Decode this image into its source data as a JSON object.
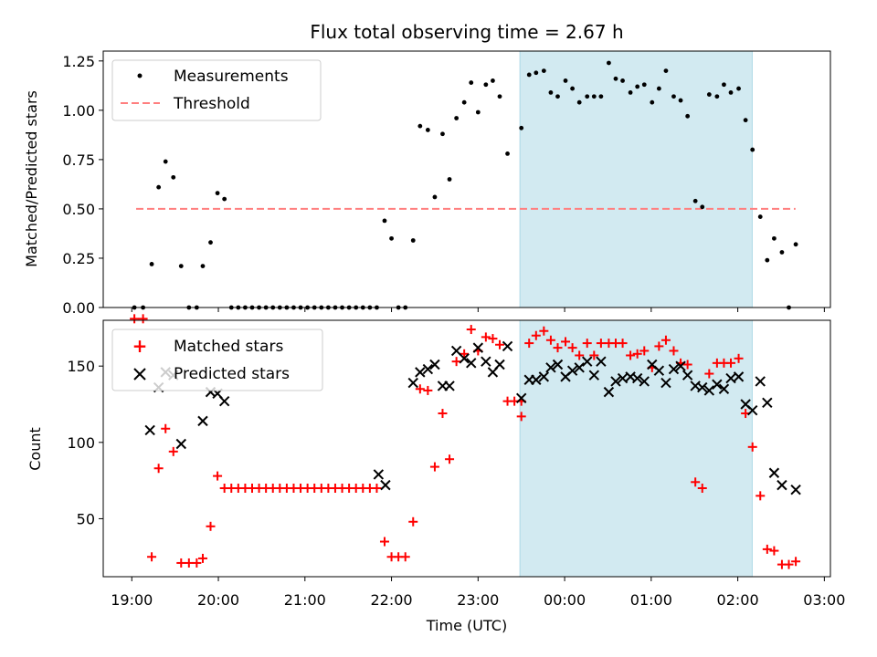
{
  "title": "Flux total observing time = 2.67 h",
  "colors": {
    "measurement": "#000000",
    "threshold": "#ff7f7f",
    "matched": "#ff0000",
    "predicted": "#000000",
    "highlight": "#add8e6"
  },
  "chart_data": [
    {
      "type": "scatter",
      "panel": "top",
      "xlabel": "",
      "ylabel": "Matched/Predicted stars",
      "x_unit": "hours since 19:00 UTC",
      "xlim": [
        -0.33,
        8.07
      ],
      "ylim": [
        0.0,
        1.3
      ],
      "yticks": [
        0.0,
        0.25,
        0.5,
        0.75,
        1.0,
        1.25
      ],
      "ytick_labels": [
        "0.00",
        "0.25",
        "0.50",
        "0.75",
        "1.00",
        "1.25"
      ],
      "legend": {
        "placement": "top-left",
        "entries": [
          "Measurements",
          "Threshold"
        ]
      },
      "highlight_band": {
        "x_start": "23:29",
        "x_end": "02:10"
      },
      "threshold": {
        "label": "Threshold",
        "y": 0.5,
        "x_start": "19:03",
        "x_end": "02:40"
      },
      "series": [
        {
          "name": "Measurements",
          "points": [
            [
              0.03,
              0.0
            ],
            [
              0.13,
              0.0
            ],
            [
              0.23,
              0.22
            ],
            [
              0.31,
              0.61
            ],
            [
              0.39,
              0.74
            ],
            [
              0.48,
              0.66
            ],
            [
              0.57,
              0.21
            ],
            [
              0.66,
              0.0
            ],
            [
              0.75,
              0.0
            ],
            [
              0.82,
              0.21
            ],
            [
              0.91,
              0.33
            ],
            [
              0.99,
              0.58
            ],
            [
              1.07,
              0.55
            ],
            [
              1.15,
              0.0
            ],
            [
              1.23,
              0.0
            ],
            [
              1.31,
              0.0
            ],
            [
              1.39,
              0.0
            ],
            [
              1.47,
              0.0
            ],
            [
              1.55,
              0.0
            ],
            [
              1.63,
              0.0
            ],
            [
              1.71,
              0.0
            ],
            [
              1.79,
              0.0
            ],
            [
              1.87,
              0.0
            ],
            [
              1.95,
              0.0
            ],
            [
              2.03,
              0.0
            ],
            [
              2.11,
              0.0
            ],
            [
              2.19,
              0.0
            ],
            [
              2.27,
              0.0
            ],
            [
              2.35,
              0.0
            ],
            [
              2.43,
              0.0
            ],
            [
              2.51,
              0.0
            ],
            [
              2.59,
              0.0
            ],
            [
              2.67,
              0.0
            ],
            [
              2.75,
              0.0
            ],
            [
              2.83,
              0.0
            ],
            [
              2.92,
              0.44
            ],
            [
              3.0,
              0.35
            ],
            [
              3.08,
              0.0
            ],
            [
              3.16,
              0.0
            ],
            [
              3.25,
              0.34
            ],
            [
              3.33,
              0.92
            ],
            [
              3.42,
              0.9
            ],
            [
              3.5,
              0.56
            ],
            [
              3.59,
              0.88
            ],
            [
              3.67,
              0.65
            ],
            [
              3.75,
              0.96
            ],
            [
              3.84,
              1.04
            ],
            [
              3.92,
              1.14
            ],
            [
              4.0,
              0.99
            ],
            [
              4.09,
              1.13
            ],
            [
              4.17,
              1.15
            ],
            [
              4.25,
              1.07
            ],
            [
              4.34,
              0.78
            ],
            [
              4.5,
              0.91
            ],
            [
              4.59,
              1.18
            ],
            [
              4.67,
              1.19
            ],
            [
              4.76,
              1.2
            ],
            [
              4.84,
              1.09
            ],
            [
              4.92,
              1.07
            ],
            [
              5.01,
              1.15
            ],
            [
              5.09,
              1.11
            ],
            [
              5.17,
              1.04
            ],
            [
              5.26,
              1.07
            ],
            [
              5.34,
              1.07
            ],
            [
              5.42,
              1.07
            ],
            [
              5.51,
              1.24
            ],
            [
              5.59,
              1.16
            ],
            [
              5.67,
              1.15
            ],
            [
              5.76,
              1.09
            ],
            [
              5.84,
              1.12
            ],
            [
              5.92,
              1.13
            ],
            [
              6.01,
              1.04
            ],
            [
              6.09,
              1.11
            ],
            [
              6.17,
              1.2
            ],
            [
              6.26,
              1.07
            ],
            [
              6.34,
              1.05
            ],
            [
              6.42,
              0.97
            ],
            [
              6.51,
              0.54
            ],
            [
              6.59,
              0.51
            ],
            [
              6.67,
              1.08
            ],
            [
              6.76,
              1.07
            ],
            [
              6.84,
              1.13
            ],
            [
              6.92,
              1.09
            ],
            [
              7.01,
              1.11
            ],
            [
              7.09,
              0.95
            ],
            [
              7.17,
              0.8
            ],
            [
              7.26,
              0.46
            ],
            [
              7.34,
              0.24
            ],
            [
              7.42,
              0.35
            ],
            [
              7.51,
              0.28
            ],
            [
              7.59,
              0.0
            ],
            [
              7.67,
              0.32
            ]
          ]
        }
      ]
    },
    {
      "type": "scatter",
      "panel": "bottom",
      "xlabel": "Time (UTC)",
      "ylabel": "Count",
      "x_unit": "hours since 19:00 UTC",
      "xlim": [
        -0.33,
        8.07
      ],
      "ylim": [
        12,
        180
      ],
      "xticks": [
        0,
        1,
        2,
        3,
        4,
        5,
        6,
        7,
        8
      ],
      "xtick_labels": [
        "19:00",
        "20:00",
        "21:00",
        "22:00",
        "23:00",
        "00:00",
        "01:00",
        "02:00",
        "03:00"
      ],
      "yticks": [
        50,
        100,
        150
      ],
      "ytick_labels": [
        "50",
        "100",
        "150"
      ],
      "legend": {
        "placement": "top-left",
        "entries": [
          "Matched stars",
          "Predicted stars"
        ]
      },
      "highlight_band": {
        "x_start": "23:29",
        "x_end": "02:10"
      },
      "series": [
        {
          "name": "Matched stars",
          "marker": "plus",
          "points": [
            [
              0.03,
              181
            ],
            [
              0.13,
              181
            ],
            [
              0.23,
              25
            ],
            [
              0.31,
              83
            ],
            [
              0.39,
              109
            ],
            [
              0.48,
              94
            ],
            [
              0.57,
              21
            ],
            [
              0.66,
              21
            ],
            [
              0.75,
              21
            ],
            [
              0.82,
              24
            ],
            [
              0.91,
              45
            ],
            [
              0.99,
              78
            ],
            [
              1.07,
              70
            ],
            [
              1.15,
              70
            ],
            [
              1.23,
              70
            ],
            [
              1.31,
              70
            ],
            [
              1.39,
              70
            ],
            [
              1.47,
              70
            ],
            [
              1.55,
              70
            ],
            [
              1.63,
              70
            ],
            [
              1.71,
              70
            ],
            [
              1.79,
              70
            ],
            [
              1.87,
              70
            ],
            [
              1.95,
              70
            ],
            [
              2.03,
              70
            ],
            [
              2.11,
              70
            ],
            [
              2.19,
              70
            ],
            [
              2.27,
              70
            ],
            [
              2.35,
              70
            ],
            [
              2.43,
              70
            ],
            [
              2.51,
              70
            ],
            [
              2.59,
              70
            ],
            [
              2.67,
              70
            ],
            [
              2.75,
              70
            ],
            [
              2.83,
              70
            ],
            [
              2.92,
              35
            ],
            [
              3.0,
              25
            ],
            [
              3.08,
              25
            ],
            [
              3.16,
              25
            ],
            [
              3.25,
              48
            ],
            [
              3.33,
              135
            ],
            [
              3.42,
              134
            ],
            [
              3.5,
              84
            ],
            [
              3.59,
              119
            ],
            [
              3.67,
              89
            ],
            [
              3.75,
              153
            ],
            [
              3.84,
              158
            ],
            [
              3.92,
              174
            ],
            [
              4.0,
              160
            ],
            [
              4.09,
              169
            ],
            [
              4.17,
              168
            ],
            [
              4.25,
              164
            ],
            [
              4.34,
              127
            ],
            [
              4.42,
              127
            ],
            [
              4.5,
              127
            ],
            [
              4.5,
              117
            ],
            [
              4.59,
              165
            ],
            [
              4.67,
              170
            ],
            [
              4.76,
              173
            ],
            [
              4.84,
              167
            ],
            [
              4.92,
              162
            ],
            [
              5.01,
              166
            ],
            [
              5.09,
              162
            ],
            [
              5.17,
              157
            ],
            [
              5.26,
              165
            ],
            [
              5.34,
              157
            ],
            [
              5.42,
              165
            ],
            [
              5.51,
              165
            ],
            [
              5.59,
              165
            ],
            [
              5.67,
              165
            ],
            [
              5.76,
              157
            ],
            [
              5.84,
              158
            ],
            [
              5.92,
              160
            ],
            [
              6.01,
              149
            ],
            [
              6.09,
              163
            ],
            [
              6.17,
              167
            ],
            [
              6.26,
              160
            ],
            [
              6.34,
              152
            ],
            [
              6.42,
              151
            ],
            [
              6.51,
              74
            ],
            [
              6.59,
              70
            ],
            [
              6.67,
              145
            ],
            [
              6.76,
              152
            ],
            [
              6.84,
              152
            ],
            [
              6.92,
              152
            ],
            [
              7.01,
              155
            ],
            [
              7.09,
              119
            ],
            [
              7.17,
              97
            ],
            [
              7.26,
              65
            ],
            [
              7.34,
              30
            ],
            [
              7.42,
              29
            ],
            [
              7.51,
              20
            ],
            [
              7.59,
              20
            ],
            [
              7.67,
              22
            ]
          ]
        },
        {
          "name": "Predicted stars",
          "marker": "x",
          "points": [
            [
              0.21,
              108
            ],
            [
              0.31,
              136
            ],
            [
              0.39,
              146
            ],
            [
              0.48,
              144
            ],
            [
              0.57,
              99
            ],
            [
              0.82,
              114
            ],
            [
              0.91,
              133
            ],
            [
              0.99,
              132
            ],
            [
              1.07,
              127
            ],
            [
              2.85,
              79
            ],
            [
              2.93,
              72
            ],
            [
              3.25,
              139
            ],
            [
              3.33,
              146
            ],
            [
              3.42,
              148
            ],
            [
              3.5,
              151
            ],
            [
              3.59,
              137
            ],
            [
              3.67,
              137
            ],
            [
              3.75,
              160
            ],
            [
              3.84,
              155
            ],
            [
              3.92,
              152
            ],
            [
              4.0,
              162
            ],
            [
              4.09,
              153
            ],
            [
              4.17,
              146
            ],
            [
              4.25,
              151
            ],
            [
              4.34,
              163
            ],
            [
              4.5,
              129
            ],
            [
              4.59,
              141
            ],
            [
              4.67,
              141
            ],
            [
              4.76,
              143
            ],
            [
              4.84,
              149
            ],
            [
              4.92,
              151
            ],
            [
              5.01,
              143
            ],
            [
              5.09,
              147
            ],
            [
              5.17,
              149
            ],
            [
              5.26,
              153
            ],
            [
              5.34,
              144
            ],
            [
              5.42,
              153
            ],
            [
              5.51,
              133
            ],
            [
              5.59,
              140
            ],
            [
              5.67,
              142
            ],
            [
              5.76,
              143
            ],
            [
              5.84,
              142
            ],
            [
              5.92,
              140
            ],
            [
              6.01,
              151
            ],
            [
              6.09,
              147
            ],
            [
              6.17,
              139
            ],
            [
              6.26,
              148
            ],
            [
              6.34,
              150
            ],
            [
              6.42,
              144
            ],
            [
              6.51,
              137
            ],
            [
              6.59,
              136
            ],
            [
              6.67,
              134
            ],
            [
              6.76,
              138
            ],
            [
              6.84,
              135
            ],
            [
              6.92,
              142
            ],
            [
              7.01,
              143
            ],
            [
              7.09,
              125
            ],
            [
              7.17,
              121
            ],
            [
              7.26,
              140
            ],
            [
              7.34,
              126
            ],
            [
              7.42,
              80
            ],
            [
              7.51,
              72
            ],
            [
              7.67,
              69
            ]
          ]
        }
      ]
    }
  ]
}
